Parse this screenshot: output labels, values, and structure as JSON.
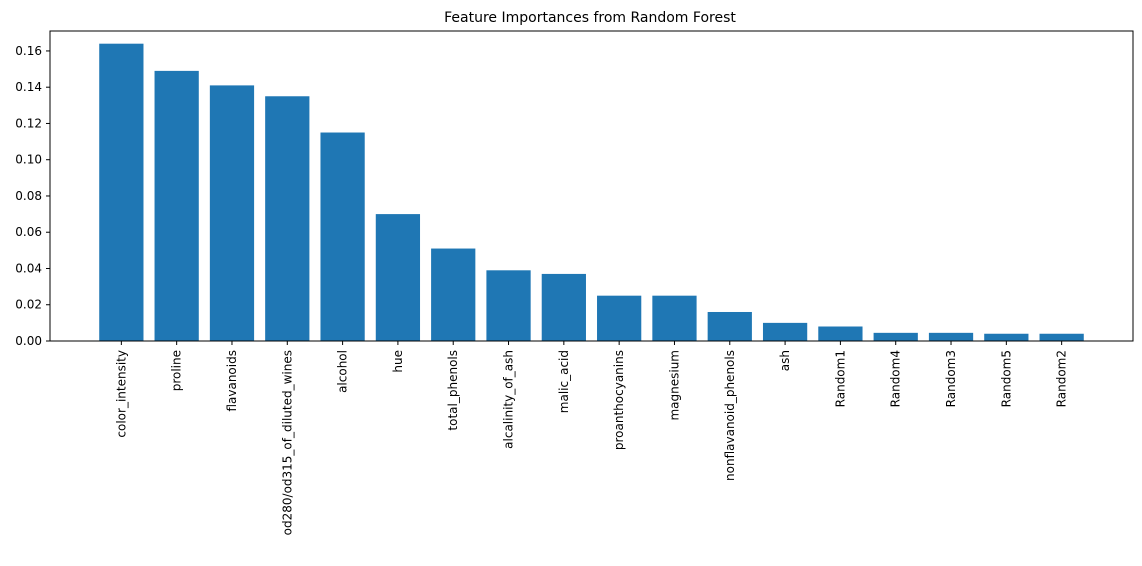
{
  "chart_data": {
    "type": "bar",
    "title": "Feature Importances from Random Forest",
    "xlabel": "",
    "ylabel": "",
    "categories": [
      "color_intensity",
      "proline",
      "flavanoids",
      "od280/od315_of_diluted_wines",
      "alcohol",
      "hue",
      "total_phenols",
      "alcalinity_of_ash",
      "malic_acid",
      "proanthocyanins",
      "magnesium",
      "nonflavanoid_phenols",
      "ash",
      "Random1",
      "Random4",
      "Random3",
      "Random5",
      "Random2"
    ],
    "values": [
      0.164,
      0.149,
      0.141,
      0.135,
      0.115,
      0.07,
      0.051,
      0.039,
      0.037,
      0.025,
      0.025,
      0.016,
      0.01,
      0.008,
      0.0045,
      0.0045,
      0.004,
      0.004
    ],
    "ylim": [
      0,
      0.171
    ],
    "yticks": [
      0.0,
      0.02,
      0.04,
      0.06,
      0.08,
      0.1,
      0.12,
      0.14,
      0.16
    ],
    "ytick_labels": [
      "0.00",
      "0.02",
      "0.04",
      "0.06",
      "0.08",
      "0.10",
      "0.12",
      "0.14",
      "0.16"
    ],
    "bar_color": "#1f77b4",
    "grid": false,
    "legend": "none"
  }
}
